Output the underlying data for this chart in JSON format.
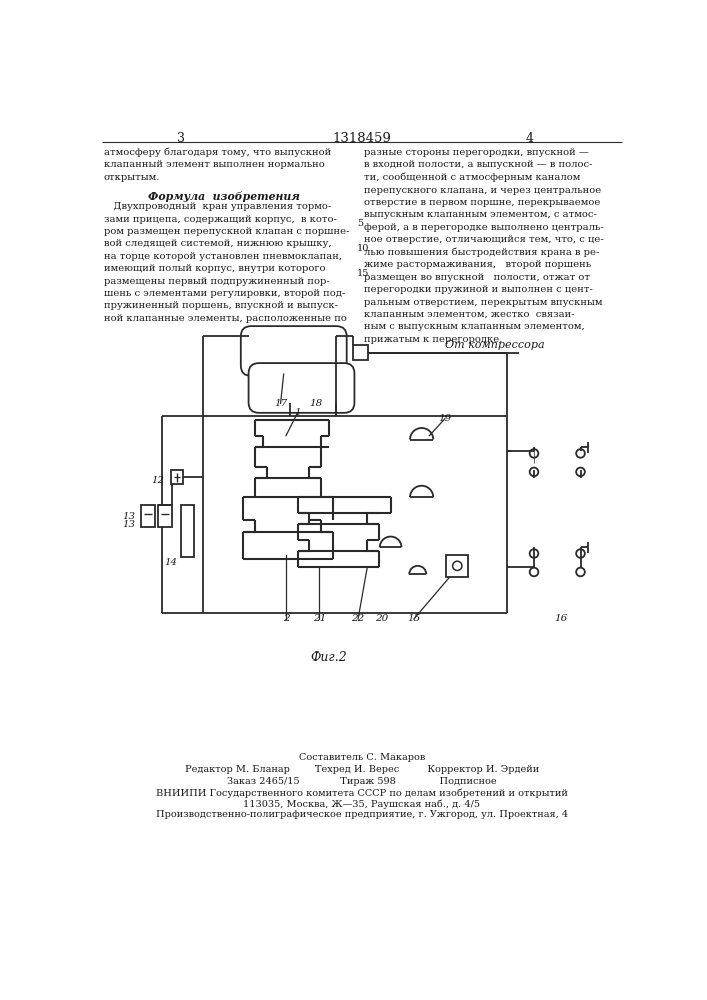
{
  "page_title": "1318459",
  "col_left": "3",
  "col_right": "4",
  "fig_label": "Фиг.2",
  "compressor_label": "От компрессора",
  "formula_title": "Формула  изобретения",
  "footer_line1": "Составитель С. Макаров",
  "footer_line2": "Редактор М. Бланар        Техред И. Верес         Корректор И. Эрдейи",
  "footer_line3": "Заказ 2465/15             Тираж 598              Подписное",
  "footer_line4": "ВНИИПИ Государственного комитета СССР по делам изобретений и открытий",
  "footer_line5": "113035, Москва, Ж—35, Раушская наб., д. 4/5",
  "footer_line6": "Производственно-полиграфическое предприятие, г. Ужгород, ул. Проектная, 4",
  "bg_color": "#ffffff",
  "line_color": "#2a2a2a",
  "text_color": "#1a1a1a"
}
